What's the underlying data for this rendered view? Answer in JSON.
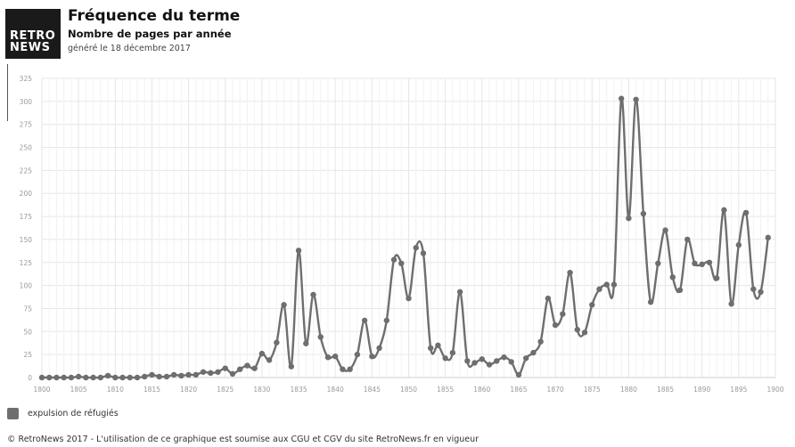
{
  "logo": {
    "line1": "RETRO",
    "line2": "NEWS"
  },
  "header": {
    "title": "Fréquence du terme",
    "subtitle": "Nombre de pages par année",
    "generated": "généré le 18 décembre 2017"
  },
  "legend": {
    "label": "expulsion de réfugiés",
    "color": "#6e6e6e"
  },
  "footer": "© RetroNews 2017 - L'utilisation de ce graphique est soumise aux CGU et CGV du site RetroNews.fr en vigueur",
  "chart_data": {
    "type": "line",
    "xlim": [
      1800,
      1900
    ],
    "ylim": [
      0,
      325
    ],
    "x_ticks": [
      1800,
      1805,
      1810,
      1815,
      1820,
      1825,
      1830,
      1835,
      1840,
      1845,
      1850,
      1855,
      1860,
      1865,
      1870,
      1875,
      1880,
      1885,
      1890,
      1895,
      1900
    ],
    "y_ticks": [
      0,
      25,
      50,
      75,
      100,
      125,
      150,
      175,
      200,
      225,
      250,
      275,
      300,
      325
    ],
    "grid": true,
    "legend_position": "bottom-left",
    "series": [
      {
        "name": "expulsion de réfugiés",
        "color": "#6e6e6e",
        "x": [
          1800,
          1801,
          1802,
          1803,
          1804,
          1805,
          1806,
          1807,
          1808,
          1809,
          1810,
          1811,
          1812,
          1813,
          1814,
          1815,
          1816,
          1817,
          1818,
          1819,
          1820,
          1821,
          1822,
          1823,
          1824,
          1825,
          1826,
          1827,
          1828,
          1829,
          1830,
          1831,
          1832,
          1833,
          1834,
          1835,
          1836,
          1837,
          1838,
          1839,
          1840,
          1841,
          1842,
          1843,
          1844,
          1845,
          1846,
          1847,
          1848,
          1849,
          1850,
          1851,
          1852,
          1853,
          1854,
          1855,
          1856,
          1857,
          1858,
          1859,
          1860,
          1861,
          1862,
          1863,
          1864,
          1865,
          1866,
          1867,
          1868,
          1869,
          1870,
          1871,
          1872,
          1873,
          1874,
          1875,
          1876,
          1877,
          1878,
          1879,
          1880,
          1881,
          1882,
          1883,
          1884,
          1885,
          1886,
          1887,
          1888,
          1889,
          1890,
          1891,
          1892,
          1893,
          1894,
          1895,
          1896,
          1897,
          1898,
          1899
        ],
        "values": [
          0,
          0,
          0,
          0,
          0,
          1,
          0,
          0,
          0,
          2,
          0,
          0,
          0,
          0,
          1,
          3,
          1,
          1,
          3,
          2,
          3,
          3,
          6,
          5,
          6,
          10,
          4,
          9,
          13,
          10,
          26,
          19,
          38,
          79,
          12,
          138,
          37,
          90,
          44,
          22,
          23,
          9,
          9,
          25,
          62,
          23,
          32,
          62,
          128,
          124,
          86,
          141,
          135,
          32,
          35,
          21,
          27,
          93,
          18,
          16,
          20,
          14,
          18,
          22,
          17,
          3,
          21,
          27,
          39,
          86,
          57,
          69,
          114,
          52,
          49,
          79,
          96,
          101,
          101,
          303,
          173,
          302,
          178,
          82,
          124,
          160,
          109,
          95,
          150,
          124,
          123,
          125,
          108,
          182,
          80,
          144,
          179,
          96,
          93,
          152
        ]
      }
    ]
  }
}
